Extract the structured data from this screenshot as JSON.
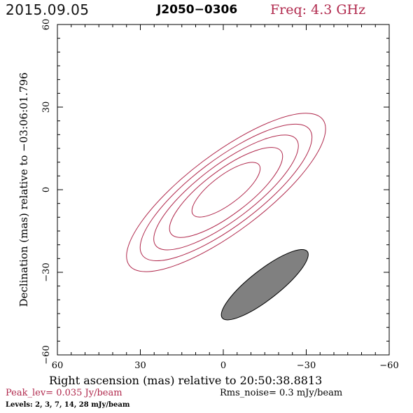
{
  "header": {
    "date": "2015.09.05",
    "source": "J2050−0306",
    "freq": "Freq: 4.3 GHz"
  },
  "colors": {
    "contour": "#b0284c",
    "beam_fill": "#808080",
    "freq_text": "#b0284c",
    "peak_text": "#b0284c"
  },
  "chart_data": {
    "type": "contour",
    "xlabel": "Right ascension (mas) relative to 20:50:38.8813",
    "ylabel": "Declination (mas) relative to −03:06:01.796",
    "xlim": [
      60,
      -60
    ],
    "ylim": [
      -60,
      60
    ],
    "x_ticks": [
      60,
      30,
      0,
      -30,
      -60
    ],
    "y_ticks": [
      60,
      30,
      0,
      -30,
      -60
    ],
    "x_tick_labels": [
      "60",
      "30",
      "0",
      "−30",
      "−60"
    ],
    "y_tick_labels": [
      "60",
      "30",
      "0",
      "−30",
      "−60"
    ],
    "contours": [
      {
        "level_mjy": 2,
        "center": [
          -1,
          -1
        ],
        "semi_major": 44,
        "semi_minor": 14,
        "pa_deg": -53
      },
      {
        "level_mjy": 3,
        "center": [
          -1,
          -1
        ],
        "semi_major": 38,
        "semi_minor": 12,
        "pa_deg": -53
      },
      {
        "level_mjy": 7,
        "center": [
          -1,
          -1
        ],
        "semi_major": 32,
        "semi_minor": 10,
        "pa_deg": -53
      },
      {
        "level_mjy": 14,
        "center": [
          -1,
          -1
        ],
        "semi_major": 25,
        "semi_minor": 8,
        "pa_deg": -53
      },
      {
        "level_mjy": 28,
        "center": [
          -1,
          0
        ],
        "semi_major": 15,
        "semi_minor": 5.2,
        "pa_deg": -53
      }
    ],
    "beam": {
      "center": [
        -15,
        -34.5
      ],
      "semi_major": 19.6,
      "semi_minor": 5.3,
      "pa_deg": -52
    },
    "peak_level": "Peak_lev=  0.035 Jy/beam",
    "rms_noise": "Rms_noise=   0.3 mJy/beam",
    "levels_text": "Levels:   2,    3,    7,   14,   28 mJy/beam"
  }
}
